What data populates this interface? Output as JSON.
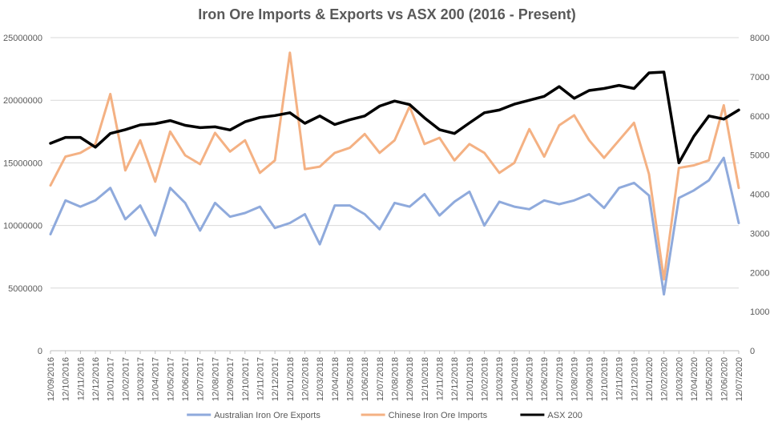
{
  "chart_data": {
    "type": "line",
    "title": "Iron Ore Imports & Exports vs ASX 200 (2016 - Present)",
    "xlabel": "",
    "ylabel": "",
    "y2label": "",
    "categories": [
      "12/09/2016",
      "12/10/2016",
      "12/11/2016",
      "12/12/2016",
      "12/01/2017",
      "12/02/2017",
      "12/03/2017",
      "12/04/2017",
      "12/05/2017",
      "12/06/2017",
      "12/07/2017",
      "12/08/2017",
      "12/09/2017",
      "12/10/2017",
      "12/11/2017",
      "12/12/2017",
      "12/01/2018",
      "12/02/2018",
      "12/03/2018",
      "12/04/2018",
      "12/05/2018",
      "12/06/2018",
      "12/07/2018",
      "12/08/2018",
      "12/09/2018",
      "12/10/2018",
      "12/11/2018",
      "12/12/2018",
      "12/01/2019",
      "12/02/2019",
      "12/03/2019",
      "12/04/2019",
      "12/05/2019",
      "12/06/2019",
      "12/07/2019",
      "12/08/2019",
      "12/09/2019",
      "12/10/2019",
      "12/11/2019",
      "12/12/2019",
      "12/01/2020",
      "12/02/2020",
      "12/03/2020",
      "12/04/2020",
      "12/05/2020",
      "12/06/2020",
      "12/07/2020"
    ],
    "ylim": [
      0,
      25000000
    ],
    "y_ticks": [
      "0",
      "5000000",
      "10000000",
      "15000000",
      "20000000",
      "25000000"
    ],
    "y2lim": [
      0,
      8000
    ],
    "y2_ticks": [
      "0",
      "1000",
      "2000",
      "3000",
      "4000",
      "5000",
      "6000",
      "7000",
      "8000"
    ],
    "grid": true,
    "legend_position": "bottom",
    "series": [
      {
        "name": "Australian Iron Ore Exports",
        "axis": "left",
        "color": "#8FAADC",
        "values": [
          9300000,
          12000000,
          11500000,
          12000000,
          13000000,
          10500000,
          11600000,
          9200000,
          13000000,
          11800000,
          9600000,
          11800000,
          10700000,
          11000000,
          11500000,
          9800000,
          10200000,
          10900000,
          8500000,
          11600000,
          11600000,
          10900000,
          9700000,
          11800000,
          11500000,
          12500000,
          10800000,
          11900000,
          12700000,
          10000000,
          11900000,
          11500000,
          11300000,
          12000000,
          11700000,
          12000000,
          12500000,
          11400000,
          13000000,
          13400000,
          12400000,
          4500000,
          12200000,
          12800000,
          13600000,
          15400000,
          10200000
        ]
      },
      {
        "name": "Chinese Iron Ore Imports",
        "axis": "left",
        "color": "#F4B183",
        "values": [
          13200000,
          15500000,
          15800000,
          16500000,
          20500000,
          14400000,
          16800000,
          13500000,
          17500000,
          15600000,
          14900000,
          17400000,
          15900000,
          16800000,
          14200000,
          15200000,
          23800000,
          14500000,
          14700000,
          15800000,
          16200000,
          17300000,
          15800000,
          16800000,
          19500000,
          16500000,
          17000000,
          15200000,
          16500000,
          15800000,
          14200000,
          15000000,
          17700000,
          15500000,
          18000000,
          18800000,
          16800000,
          15400000,
          16800000,
          18200000,
          14100000,
          5700000,
          14600000,
          14800000,
          15200000,
          19600000,
          13000000
        ]
      },
      {
        "name": "ASX 200",
        "axis": "right",
        "color": "#000000",
        "values": [
          5300,
          5450,
          5450,
          5200,
          5550,
          5650,
          5770,
          5800,
          5880,
          5760,
          5700,
          5720,
          5640,
          5850,
          5960,
          6010,
          6080,
          5810,
          6000,
          5780,
          5900,
          6000,
          6250,
          6380,
          6290,
          5950,
          5650,
          5550,
          5820,
          6080,
          6150,
          6300,
          6400,
          6500,
          6750,
          6450,
          6650,
          6700,
          6780,
          6700,
          7100,
          7120,
          4800,
          5480,
          6000,
          5920,
          6150
        ]
      }
    ]
  }
}
